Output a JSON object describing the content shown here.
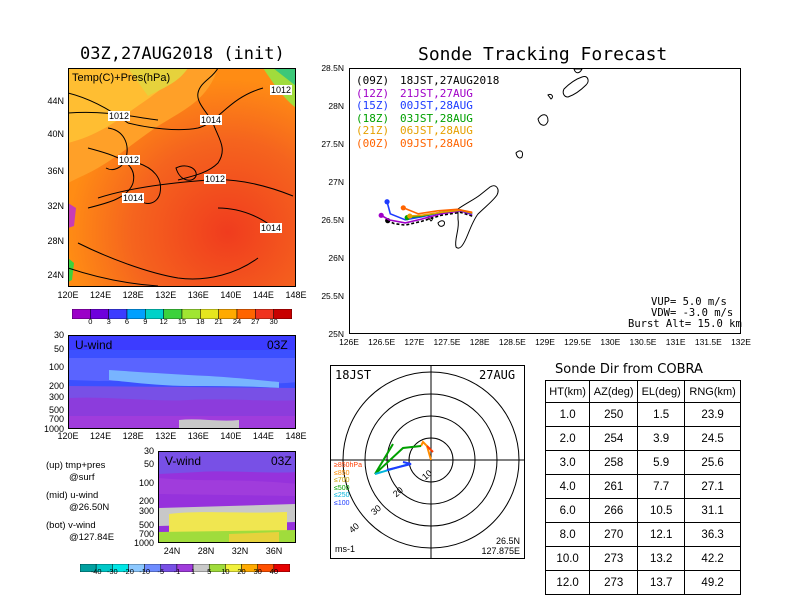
{
  "left_map": {
    "title": "03Z,27AUG2018 (init)",
    "label": "Temp(C)+Pres(hPa)",
    "lat_ticks": [
      "44N",
      "40N",
      "36N",
      "32N",
      "28N",
      "24N"
    ],
    "lon_ticks": [
      "120E",
      "124E",
      "128E",
      "132E",
      "136E",
      "140E",
      "144E",
      "148E"
    ],
    "contour_labels": [
      "1012",
      "1012",
      "1014",
      "1012",
      "1012",
      "1014",
      "1014"
    ],
    "colorbar_labels": [
      "0",
      "3",
      "6",
      "9",
      "12",
      "15",
      "18",
      "21",
      "24",
      "27",
      "30"
    ],
    "colorbar_colors": [
      "#9b00c8",
      "#6e00dc",
      "#3c3cff",
      "#00a0ff",
      "#00d2c8",
      "#3cd23c",
      "#a0e632",
      "#e6e61e",
      "#ffaa00",
      "#ff6400",
      "#f0321e",
      "#c80000"
    ]
  },
  "u_wind": {
    "label": "U-wind",
    "time": "03Z",
    "p_ticks": [
      "30",
      "50",
      "100",
      "200",
      "300",
      "500",
      "700",
      "1000"
    ],
    "lon_ticks": [
      "120E",
      "124E",
      "128E",
      "132E",
      "136E",
      "140E",
      "144E",
      "148E"
    ]
  },
  "v_wind": {
    "label": "V-wind",
    "time": "03Z",
    "p_ticks": [
      "30",
      "50",
      "100",
      "200",
      "300",
      "500",
      "700",
      "1000"
    ],
    "lat_ticks": [
      "24N",
      "28N",
      "32N",
      "36N"
    ],
    "notes": [
      "(up) tmp+pres",
      "@surf",
      "(mid) u-wind",
      "@26.50N",
      "(bot) v-wind",
      "@127.84E"
    ],
    "colorbar_labels": [
      "-40",
      "-30",
      "-20",
      "-10",
      "-5",
      "-1",
      "1",
      "5",
      "10",
      "20",
      "30",
      "40"
    ],
    "colorbar_colors": [
      "#00a0a0",
      "#00c8c8",
      "#00e6e6",
      "#8cc8ff",
      "#6e8cff",
      "#7850e6",
      "#a03cdc",
      "#c8c8c8",
      "#a0dc3c",
      "#f0f03c",
      "#ffaa00",
      "#ff5000",
      "#e60000"
    ]
  },
  "track_chart": {
    "title": "Sonde Tracking Forecast",
    "legend": [
      {
        "tag": "(09Z)",
        "text": "18JST,27AUG2018",
        "color": "#000000"
      },
      {
        "tag": "(12Z)",
        "text": "21JST,27AUG",
        "color": "#a000c8"
      },
      {
        "tag": "(15Z)",
        "text": "00JST,28AUG",
        "color": "#1e3cff"
      },
      {
        "tag": "(18Z)",
        "text": "03JST,28AUG",
        "color": "#00a000"
      },
      {
        "tag": "(21Z)",
        "text": "06JST,28AUG",
        "color": "#e6a000"
      },
      {
        "tag": "(00Z)",
        "text": "09JST,28AUG",
        "color": "#ff6400"
      }
    ],
    "params": [
      "VUP=  5.0 m/s",
      "VDW= -3.0 m/s",
      "Burst Alt= 15.0 km"
    ]
  },
  "chart_data": [
    {
      "type": "line",
      "title": "Sonde Tracking Forecast",
      "xlim": [
        126,
        132
      ],
      "ylim": [
        25,
        28.5
      ],
      "x_ticks": [
        "126E",
        "126.5E",
        "127E",
        "127.5E",
        "128E",
        "128.5E",
        "129E",
        "129.5E",
        "130E",
        "130.5E",
        "131E",
        "131.5E",
        "132E"
      ],
      "y_ticks": [
        "25N",
        "25.5N",
        "26N",
        "26.5N",
        "27N",
        "27.5N",
        "28N",
        "28.5N"
      ],
      "series": [
        {
          "name": "(09Z) 18JST,27AUG2018",
          "color": "#000000",
          "x": [
            127.88,
            127.7,
            127.4,
            127.1,
            126.85,
            126.68,
            126.58
          ],
          "y": [
            26.55,
            26.6,
            26.56,
            26.48,
            26.43,
            26.45,
            26.49
          ]
        },
        {
          "name": "(12Z) 21JST,27AUG",
          "color": "#a000c8",
          "x": [
            127.88,
            127.7,
            127.4,
            127.1,
            126.85,
            126.6,
            126.48
          ],
          "y": [
            26.57,
            26.62,
            26.58,
            26.51,
            26.46,
            26.5,
            26.56
          ]
        },
        {
          "name": "(15Z) 00JST,28AUG",
          "color": "#1e3cff",
          "x": [
            127.88,
            127.7,
            127.4,
            127.1,
            126.85,
            126.62,
            126.57
          ],
          "y": [
            26.58,
            26.63,
            26.6,
            26.54,
            26.5,
            26.58,
            26.74
          ]
        },
        {
          "name": "(18Z) 03JST,28AUG",
          "color": "#00a000",
          "x": [
            127.88,
            127.7,
            127.4,
            127.1,
            126.88
          ],
          "y": [
            26.59,
            26.63,
            26.6,
            26.55,
            26.53
          ]
        },
        {
          "name": "(21Z) 06JST,28AUG",
          "color": "#e6a000",
          "x": [
            127.88,
            127.7,
            127.4,
            127.1,
            126.92
          ],
          "y": [
            26.59,
            26.63,
            26.6,
            26.56,
            26.55
          ]
        },
        {
          "name": "(00Z) 09JST,28AUG",
          "color": "#ff6400",
          "x": [
            127.88,
            127.65,
            127.35,
            127.05,
            126.82
          ],
          "y": [
            26.6,
            26.64,
            26.62,
            26.58,
            26.66
          ]
        }
      ]
    },
    {
      "type": "table",
      "title": "Sonde Dir from COBRA",
      "columns": [
        "HT(km)",
        "AZ(deg)",
        "EL(deg)",
        "RNG(km)"
      ],
      "rows": [
        [
          "1.0",
          "250",
          "1.5",
          "23.9"
        ],
        [
          "2.0",
          "254",
          "3.9",
          "24.5"
        ],
        [
          "3.0",
          "258",
          "5.9",
          "25.6"
        ],
        [
          "4.0",
          "261",
          "7.7",
          "27.1"
        ],
        [
          "6.0",
          "266",
          "10.5",
          "31.1"
        ],
        [
          "8.0",
          "270",
          "12.1",
          "36.3"
        ],
        [
          "10.0",
          "273",
          "13.2",
          "42.2"
        ],
        [
          "12.0",
          "273",
          "13.7",
          "49.2"
        ]
      ]
    }
  ],
  "hodograph": {
    "time_label": "18JST",
    "date_label": "27AUG",
    "ring_labels": [
      "10",
      "20",
      "30",
      "40"
    ],
    "level_labels": [
      {
        "text": "≥850hPa",
        "color": "#ff3c00"
      },
      {
        "text": "≤850",
        "color": "#ff8c00"
      },
      {
        "text": "≤700",
        "color": "#c8a000"
      },
      {
        "text": "≤500",
        "color": "#00a000"
      },
      {
        "text": "≤250",
        "color": "#00b4dc"
      },
      {
        "text": "≤100",
        "color": "#1e3cff"
      }
    ],
    "units": "ms-1",
    "lat": "26.5N",
    "lon": "127.875E"
  }
}
